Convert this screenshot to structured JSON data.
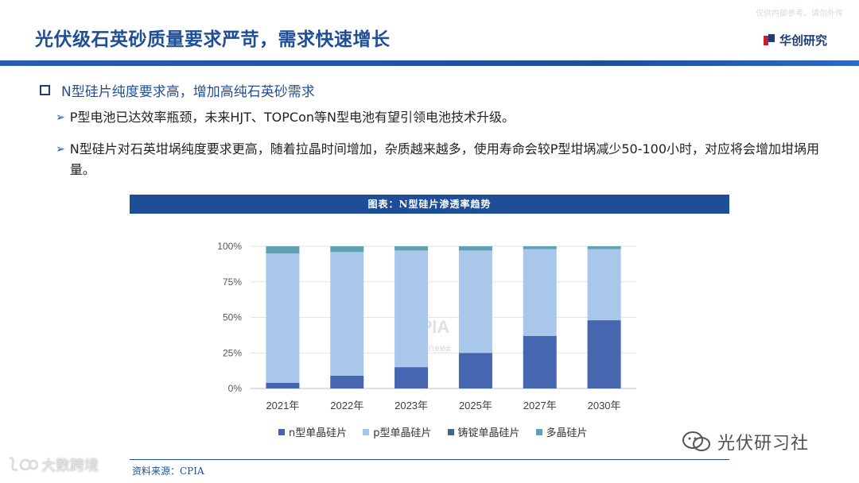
{
  "header": {
    "watermark": "仅供内部参考，请勿外传",
    "title": "光伏级石英砂质量要求严苛，需求快速增长",
    "brand": "华创研究"
  },
  "section": {
    "heading": "N型硅片纯度要求高，增加高纯石英砂需求",
    "bullets": [
      "P型电池已达效率瓶颈，未来HJT、TOPCon等N型电池有望引领电池技术升级。",
      "N型硅片对石英坩埚纯度要求更高，随着拉晶时间增加，杂质越来越多，使用寿命会较P型坩埚减少50-100小时，对应将会增加坩埚用量。"
    ]
  },
  "chart_banner": "图表：N型硅片渗透率趋势",
  "chart_watermark": {
    "logo": "CPIA",
    "subtitle": "中国光伏行业协会"
  },
  "chart_data": {
    "type": "bar",
    "stacked": true,
    "categories": [
      "2021年",
      "2022年",
      "2023年",
      "2025年",
      "2027年",
      "2030年"
    ],
    "series": [
      {
        "name": "n型单晶硅片",
        "color": "#4666b0",
        "values": [
          4,
          9,
          15,
          25,
          37,
          48
        ]
      },
      {
        "name": "p型单晶硅片",
        "color": "#a9c7ea",
        "values": [
          91,
          87,
          82,
          72,
          61,
          50
        ]
      },
      {
        "name": "铸锭单晶硅片",
        "color": "#3e6a8a",
        "values": [
          0,
          0,
          0,
          0,
          0,
          0
        ]
      },
      {
        "name": "多晶硅片",
        "color": "#5fa0b3",
        "values": [
          5,
          4,
          3,
          3,
          2,
          2
        ]
      }
    ],
    "yticks": [
      "0%",
      "25%",
      "50%",
      "75%",
      "100%"
    ],
    "ylim": [
      0,
      100
    ],
    "legend_position": "bottom"
  },
  "source": "资料来源：CPIA",
  "watermarks": {
    "right": "光伏研习社",
    "left": "大数跨境"
  }
}
